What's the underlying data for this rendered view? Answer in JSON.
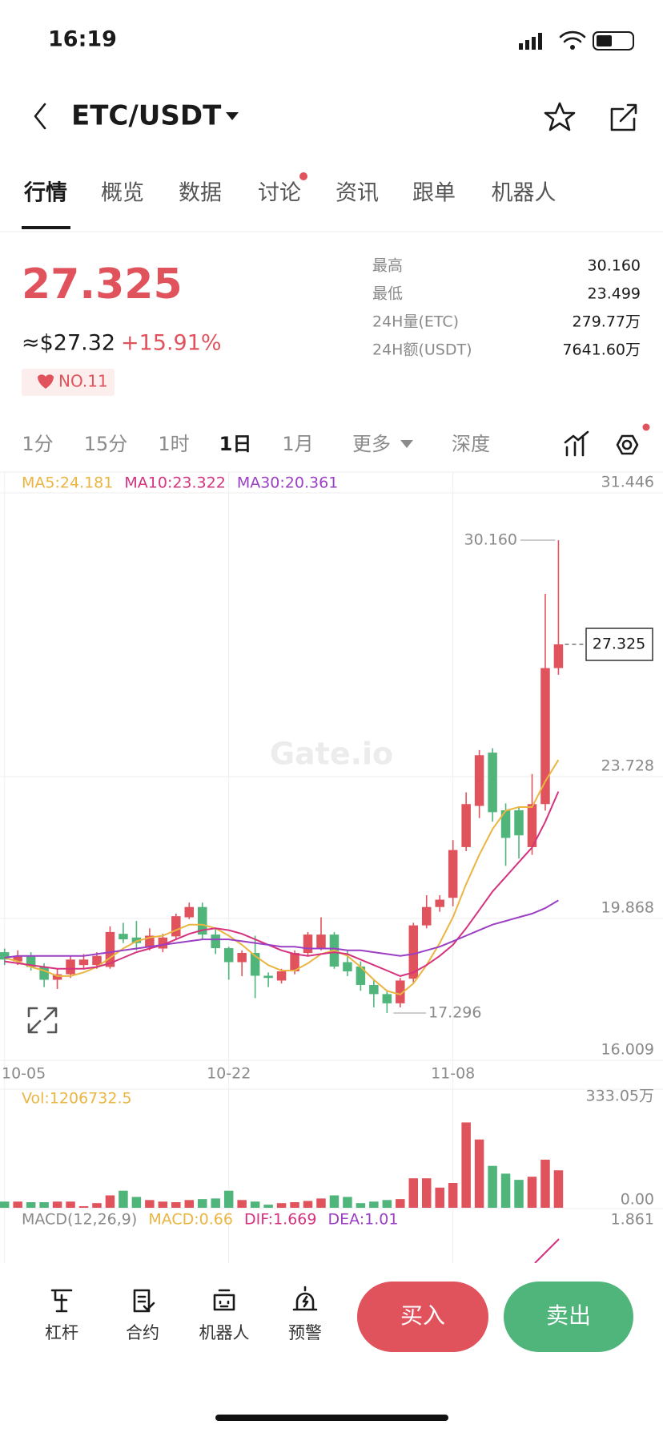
{
  "status_bar": {
    "time": "16:19"
  },
  "header": {
    "pair": "ETC/USDT"
  },
  "tabs": [
    "行情",
    "概览",
    "数据",
    "讨论",
    "资讯",
    "跟单",
    "机器人"
  ],
  "price": {
    "usd": "≈$27.32",
    "change": "+15.91%",
    "rank": "NO.11"
  },
  "stats": [
    {
      "label": "最高",
      "value": "30.160"
    },
    {
      "label": "最低",
      "value": "23.499"
    },
    {
      "label": "24H量(ETC)",
      "value": "279.77万"
    },
    {
      "label": "24H额(USDT)",
      "value": "7641.60万"
    }
  ],
  "timeframes": [
    "1分",
    "15分",
    "1时",
    "1日",
    "1月",
    "更多",
    "深度"
  ],
  "chart_data": {
    "type": "candlestick",
    "categories": [
      "10-05",
      null,
      null,
      null,
      null,
      null,
      null,
      null,
      null,
      null,
      null,
      null,
      null,
      null,
      null,
      null,
      null,
      "10-22",
      null,
      null,
      null,
      null,
      null,
      null,
      null,
      null,
      null,
      null,
      null,
      null,
      null,
      null,
      null,
      null,
      "11-08",
      null,
      null,
      null,
      null,
      null,
      null,
      null,
      null
    ],
    "open": [
      18.95,
      18.7,
      18.85,
      18.55,
      18.2,
      18.35,
      18.6,
      18.6,
      18.55,
      19.45,
      19.35,
      19.1,
      19.05,
      19.38,
      19.9,
      20.18,
      19.43,
      19.06,
      18.68,
      18.93,
      18.31,
      18.18,
      18.43,
      18.93,
      19.06,
      19.43,
      18.68,
      18.56,
      18.06,
      17.81,
      17.56,
      18.23,
      19.68,
      20.18,
      20.43,
      21.81,
      22.93,
      24.38,
      22.81,
      22.81,
      21.81,
      22.98,
      26.68
    ],
    "high": [
      19.05,
      19.0,
      18.95,
      18.65,
      18.5,
      18.85,
      18.9,
      18.95,
      19.65,
      19.75,
      19.8,
      19.6,
      19.45,
      20.0,
      20.3,
      20.3,
      19.6,
      19.1,
      19.0,
      19.4,
      18.4,
      18.5,
      19.0,
      19.5,
      19.9,
      19.5,
      19.0,
      18.7,
      18.2,
      17.9,
      18.25,
      19.75,
      20.5,
      20.5,
      22.0,
      23.3,
      24.45,
      24.5,
      23.0,
      22.9,
      23.8,
      28.7,
      30.16
    ],
    "low": [
      18.6,
      18.6,
      18.45,
      18.0,
      17.95,
      18.25,
      18.5,
      18.5,
      18.5,
      19.2,
      19.0,
      19.0,
      18.95,
      19.3,
      19.85,
      19.3,
      18.9,
      18.2,
      18.3,
      17.7,
      18.0,
      18.1,
      18.35,
      18.85,
      19.0,
      18.5,
      18.3,
      17.9,
      17.45,
      17.296,
      17.45,
      18.1,
      19.6,
      20.05,
      20.2,
      21.7,
      22.6,
      22.5,
      21.3,
      21.5,
      21.6,
      22.8,
      26.5
    ],
    "close": [
      18.75,
      18.85,
      18.55,
      18.2,
      18.35,
      18.75,
      18.75,
      18.85,
      19.5,
      19.3,
      19.2,
      19.4,
      19.35,
      19.93,
      20.18,
      19.43,
      19.06,
      18.68,
      18.93,
      18.31,
      18.25,
      18.43,
      18.93,
      19.43,
      19.43,
      18.56,
      18.43,
      18.06,
      17.81,
      17.56,
      18.18,
      19.68,
      20.18,
      20.38,
      21.73,
      22.98,
      24.31,
      22.76,
      22.06,
      22.13,
      22.98,
      26.68,
      27.325
    ],
    "up_color": "#e0525c",
    "down_color": "#4fb57b",
    "ma": [
      {
        "name": "MA5:24.181",
        "color": "#eab540",
        "values": [
          18.8,
          18.7,
          18.55,
          18.45,
          18.3,
          18.3,
          18.4,
          18.55,
          18.8,
          19.05,
          19.25,
          19.35,
          19.4,
          19.55,
          19.7,
          19.7,
          19.6,
          19.4,
          19.15,
          18.85,
          18.6,
          18.45,
          18.45,
          18.65,
          18.9,
          19.0,
          18.85,
          18.55,
          18.2,
          17.9,
          17.8,
          18.1,
          18.6,
          19.2,
          19.9,
          20.8,
          21.6,
          22.3,
          22.8,
          22.9,
          22.9,
          23.6,
          24.181
        ]
      },
      {
        "name": "MA10:23.322",
        "color": "#d6337f",
        "values": [
          18.7,
          18.65,
          18.6,
          18.55,
          18.5,
          18.5,
          18.5,
          18.55,
          18.65,
          18.8,
          18.95,
          19.05,
          19.15,
          19.3,
          19.45,
          19.55,
          19.6,
          19.55,
          19.45,
          19.3,
          19.15,
          19.0,
          18.9,
          18.85,
          18.9,
          18.95,
          18.9,
          18.75,
          18.6,
          18.45,
          18.3,
          18.4,
          18.6,
          18.85,
          19.15,
          19.6,
          20.1,
          20.6,
          21.0,
          21.4,
          21.8,
          22.5,
          23.322
        ]
      },
      {
        "name": "MA30:20.361",
        "color": "#9b3fc4",
        "values": [
          18.8,
          18.85,
          18.85,
          18.85,
          18.85,
          18.85,
          18.85,
          18.9,
          18.95,
          19.0,
          19.05,
          19.1,
          19.15,
          19.2,
          19.25,
          19.3,
          19.3,
          19.3,
          19.25,
          19.2,
          19.15,
          19.1,
          19.1,
          19.05,
          19.05,
          19.05,
          19.0,
          19.0,
          18.95,
          18.9,
          18.85,
          18.9,
          19.0,
          19.1,
          19.25,
          19.4,
          19.55,
          19.7,
          19.8,
          19.9,
          20.0,
          20.15,
          20.361
        ]
      }
    ],
    "ylim": [
      16.009,
      31.446
    ],
    "yticks": [
      31.446,
      23.728,
      19.868,
      16.009
    ],
    "grid": true,
    "last_price": 27.325,
    "high_label": {
      "value": 30.16,
      "label": "30.160"
    },
    "low_label": {
      "value": 17.296,
      "label": "17.296"
    },
    "watermark": "Gate.io",
    "volume": {
      "name": "Vol:1206732.5",
      "values": [
        200000,
        200000,
        180000,
        180000,
        200000,
        200000,
        50000,
        150000,
        400000,
        550000,
        350000,
        250000,
        200000,
        180000,
        250000,
        280000,
        300000,
        550000,
        250000,
        200000,
        100000,
        150000,
        180000,
        220000,
        300000,
        400000,
        350000,
        150000,
        200000,
        250000,
        280000,
        950000,
        950000,
        650000,
        800000,
        2750000,
        2200000,
        1350000,
        1100000,
        900000,
        1000000,
        1550000,
        1206732.5
      ],
      "ylim": [
        0,
        3330500
      ],
      "yticks": [
        {
          "value": 0,
          "label": "0.00"
        },
        {
          "value": 3330500,
          "label": "333.05万"
        }
      ]
    },
    "macd": {
      "title": "MACD(12,26,9)",
      "macd": "MACD:0.66",
      "dif": "DIF:1.669",
      "dea": "DEA:1.01",
      "top": 1.861
    }
  },
  "bottom_nav": [
    "杠杆",
    "合约",
    "机器人",
    "预警"
  ],
  "buy": "买入",
  "sell": "卖出"
}
